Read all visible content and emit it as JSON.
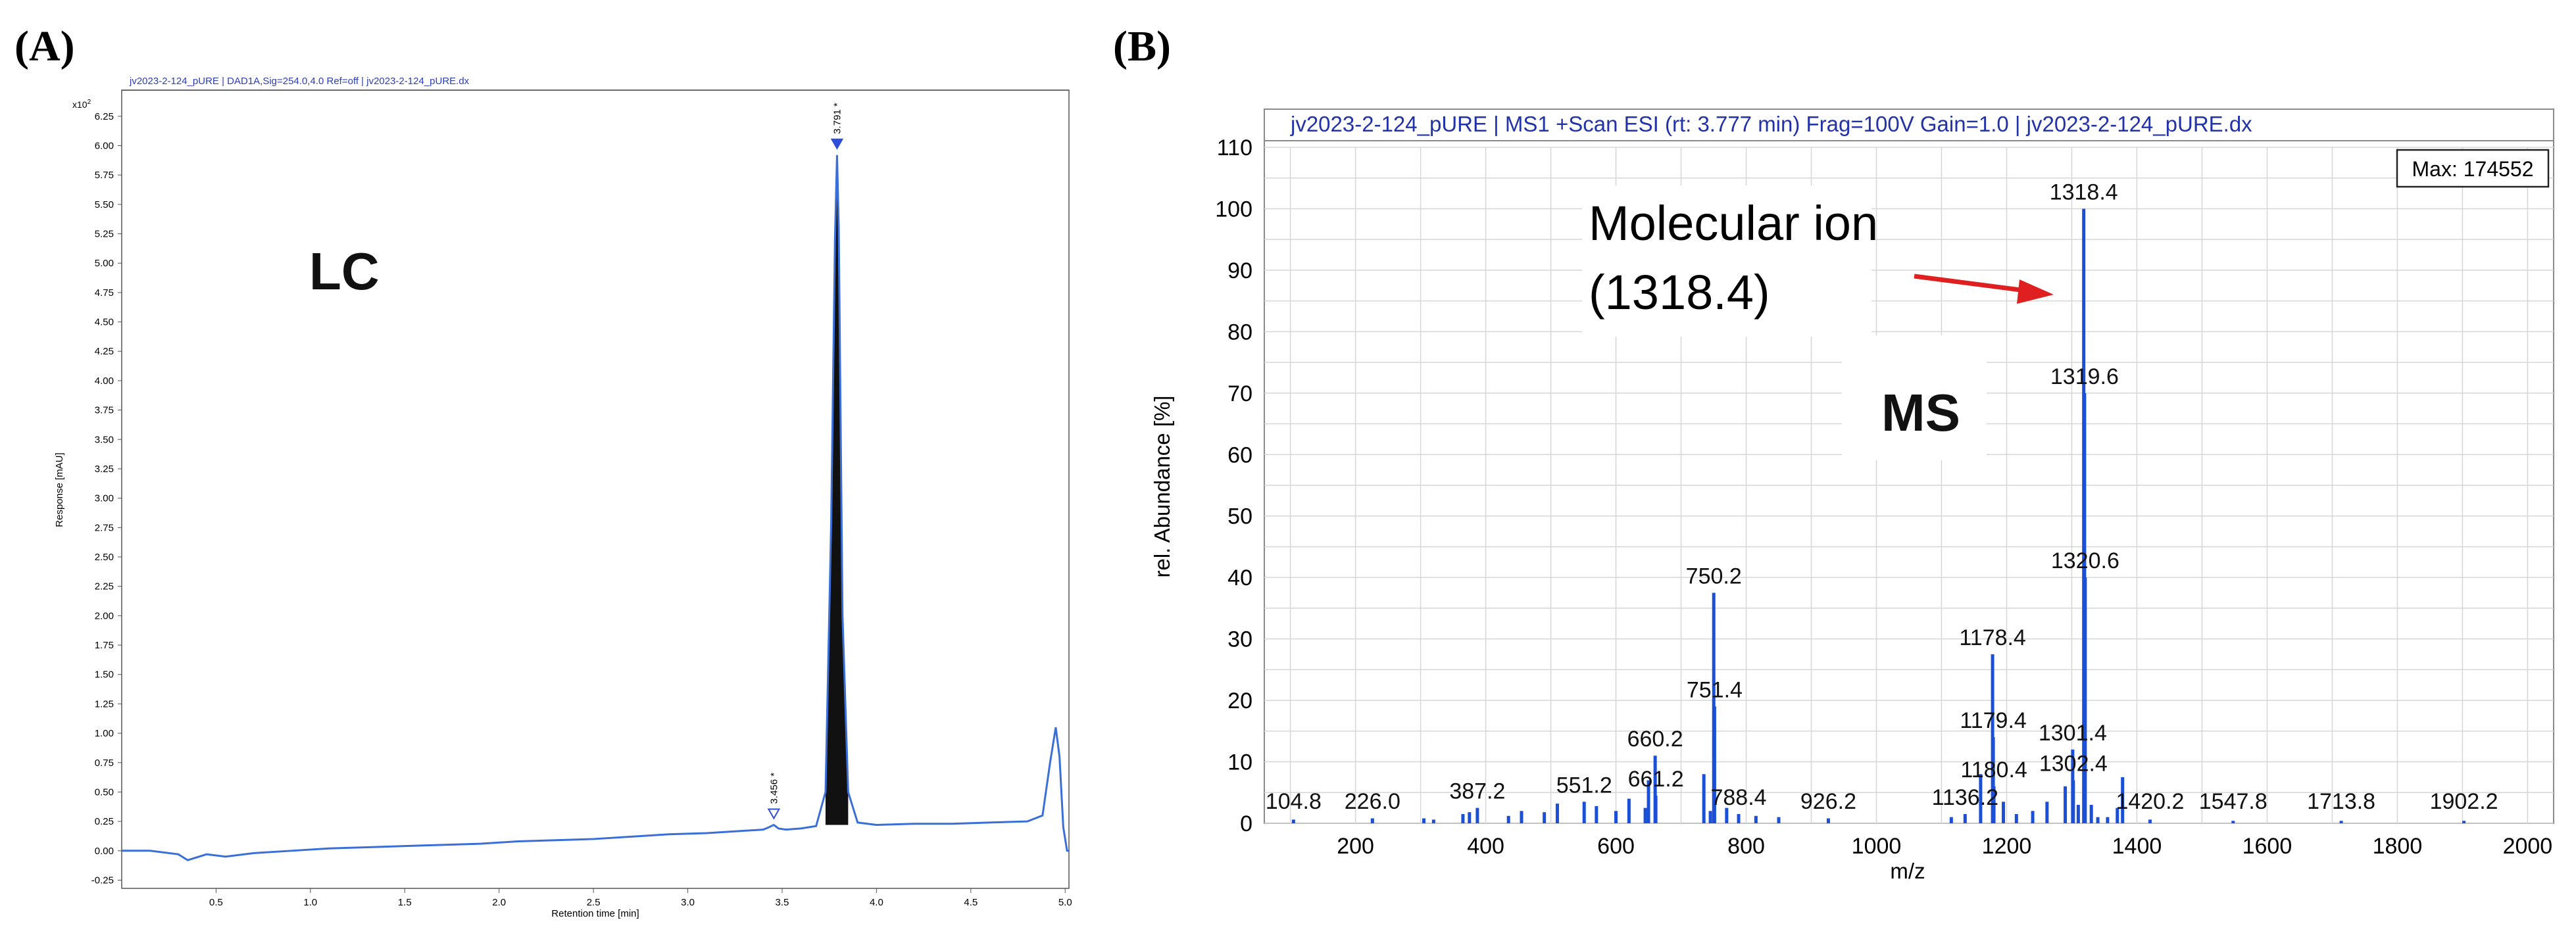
{
  "panels": [
    {
      "letter": "(A)"
    },
    {
      "letter": "(B)"
    }
  ],
  "chart_data": [
    {
      "type": "line",
      "panel": "(A)",
      "title": "jv2023-2-124_pURE | DAD1A,Sig=254.0,4.0 Ref=off | jv2023-2-124_pURE.dx",
      "xlabel": "Retention time [min]",
      "ylabel": "Response [mAU]",
      "y_multiplier": "x10",
      "y_exponent": "2",
      "xlim": [
        0.0,
        5.02
      ],
      "ylim": [
        -0.32,
        6.4
      ],
      "xticks": [
        0.5,
        1.0,
        1.5,
        2.0,
        2.5,
        3.0,
        3.5,
        4.0,
        4.5,
        5.0
      ],
      "xtick_labels": [
        "0.5",
        "1.0",
        "1.5",
        "2.0",
        "2.5",
        "3.0",
        "3.5",
        "4.0",
        "4.5",
        "5.0"
      ],
      "yticks": [
        -0.25,
        0,
        0.25,
        0.5,
        0.75,
        1.0,
        1.25,
        1.5,
        1.75,
        2.0,
        2.25,
        2.5,
        2.75,
        3.0,
        3.25,
        3.5,
        3.75,
        4.0,
        4.25,
        4.5,
        4.75,
        5.0,
        5.25,
        5.5,
        5.75,
        6.0,
        6.25
      ],
      "ytick_labels": [
        "-0.25",
        "0.00",
        "0.25",
        "0.50",
        "0.75",
        "1.00",
        "1.25",
        "1.50",
        "1.75",
        "2.00",
        "2.25",
        "2.50",
        "2.75",
        "3.00",
        "3.25",
        "3.50",
        "3.75",
        "4.00",
        "4.25",
        "4.50",
        "4.75",
        "5.00",
        "5.25",
        "5.50",
        "5.75",
        "6.00",
        "6.25"
      ],
      "annotation": "LC",
      "peaks": [
        {
          "x": 3.456,
          "y": 0.22,
          "label": "3.456 *"
        },
        {
          "x": 3.791,
          "y": 5.92,
          "label": "3.791 *"
        }
      ],
      "series": [
        {
          "color": "#3a6fd8",
          "x": [
            0.0,
            0.15,
            0.3,
            0.35,
            0.45,
            0.55,
            0.7,
            0.9,
            1.1,
            1.3,
            1.5,
            1.7,
            1.9,
            2.1,
            2.3,
            2.5,
            2.7,
            2.9,
            3.1,
            3.3,
            3.4,
            3.43,
            3.456,
            3.48,
            3.52,
            3.6,
            3.68,
            3.73,
            3.76,
            3.78,
            3.791,
            3.8,
            3.82,
            3.85,
            3.9,
            4.0,
            4.2,
            4.4,
            4.6,
            4.8,
            4.88,
            4.92,
            4.95,
            4.97,
            4.99,
            5.01,
            5.02
          ],
          "y": [
            0.0,
            0.0,
            -0.03,
            -0.08,
            -0.03,
            -0.05,
            -0.02,
            0.0,
            0.02,
            0.03,
            0.04,
            0.05,
            0.06,
            0.08,
            0.09,
            0.1,
            0.12,
            0.14,
            0.15,
            0.17,
            0.18,
            0.2,
            0.22,
            0.19,
            0.18,
            0.19,
            0.21,
            0.5,
            2.8,
            5.2,
            5.92,
            5.3,
            2.0,
            0.5,
            0.24,
            0.22,
            0.23,
            0.23,
            0.24,
            0.25,
            0.3,
            0.75,
            1.05,
            0.8,
            0.2,
            0.0,
            0.0
          ]
        }
      ]
    },
    {
      "type": "bar",
      "panel": "(B)",
      "title": "jv2023-2-124_pURE | MS1 +Scan ESI (rt: 3.777 min) Frag=100V Gain=1.0 | jv2023-2-124_pURE.dx",
      "xlabel": "m/z",
      "ylabel": "rel. Abundance [%]",
      "xlim": [
        60,
        2040
      ],
      "ylim": [
        0,
        110
      ],
      "xticks": [
        200,
        400,
        600,
        800,
        1000,
        1200,
        1400,
        1600,
        1800,
        2000
      ],
      "xtick_labels": [
        "200",
        "400",
        "600",
        "800",
        "1000",
        "1200",
        "1400",
        "1600",
        "1800",
        "2000"
      ],
      "yticks": [
        0,
        10,
        20,
        30,
        40,
        50,
        60,
        70,
        80,
        90,
        100,
        110
      ],
      "ytick_labels": [
        "0",
        "10",
        "20",
        "30",
        "40",
        "50",
        "60",
        "70",
        "80",
        "90",
        "100",
        "110"
      ],
      "grid": true,
      "max_label": "Max: 174552",
      "annotation": "MS",
      "callout": {
        "line1": "Molecular ion",
        "line2": "(1318.4)"
      },
      "color": "#1a4fd6",
      "peaks": [
        {
          "x": 104.8,
          "y": 0.6
        },
        {
          "x": 226.0,
          "y": 0.8
        },
        {
          "x": 305,
          "y": 0.8
        },
        {
          "x": 320,
          "y": 0.6
        },
        {
          "x": 365,
          "y": 1.5
        },
        {
          "x": 375,
          "y": 1.8
        },
        {
          "x": 387.2,
          "y": 2.5
        },
        {
          "x": 435,
          "y": 1.2
        },
        {
          "x": 455,
          "y": 2.0
        },
        {
          "x": 490,
          "y": 1.8
        },
        {
          "x": 510,
          "y": 3.2
        },
        {
          "x": 551.2,
          "y": 3.5
        },
        {
          "x": 570,
          "y": 2.8
        },
        {
          "x": 600,
          "y": 2.0
        },
        {
          "x": 620,
          "y": 4.0
        },
        {
          "x": 645,
          "y": 2.5
        },
        {
          "x": 650,
          "y": 7.0
        },
        {
          "x": 660.2,
          "y": 11.0
        },
        {
          "x": 661.2,
          "y": 4.5
        },
        {
          "x": 735,
          "y": 8.0
        },
        {
          "x": 745,
          "y": 2.0
        },
        {
          "x": 750.2,
          "y": 37.5
        },
        {
          "x": 751.4,
          "y": 19.0
        },
        {
          "x": 770,
          "y": 2.5
        },
        {
          "x": 788.4,
          "y": 1.5
        },
        {
          "x": 815,
          "y": 1.2
        },
        {
          "x": 850,
          "y": 1.0
        },
        {
          "x": 926.2,
          "y": 0.8
        },
        {
          "x": 1115,
          "y": 1.0
        },
        {
          "x": 1136.2,
          "y": 1.5
        },
        {
          "x": 1160,
          "y": 8.0
        },
        {
          "x": 1178.4,
          "y": 27.5
        },
        {
          "x": 1179.4,
          "y": 14.0
        },
        {
          "x": 1180.4,
          "y": 6.0
        },
        {
          "x": 1195,
          "y": 3.5
        },
        {
          "x": 1215,
          "y": 1.5
        },
        {
          "x": 1240,
          "y": 2.0
        },
        {
          "x": 1262,
          "y": 3.5
        },
        {
          "x": 1290,
          "y": 6.0
        },
        {
          "x": 1301.4,
          "y": 12.0
        },
        {
          "x": 1302.4,
          "y": 7.0
        },
        {
          "x": 1310,
          "y": 3.0
        },
        {
          "x": 1318.4,
          "y": 100.0
        },
        {
          "x": 1319.6,
          "y": 70.0
        },
        {
          "x": 1320.6,
          "y": 40.0
        },
        {
          "x": 1330,
          "y": 3.0
        },
        {
          "x": 1340,
          "y": 1.0
        },
        {
          "x": 1355,
          "y": 1.0
        },
        {
          "x": 1370,
          "y": 2.5
        },
        {
          "x": 1378,
          "y": 7.5
        },
        {
          "x": 1420.2,
          "y": 0.6
        },
        {
          "x": 1547.8,
          "y": 0.4
        },
        {
          "x": 1713.8,
          "y": 0.4
        },
        {
          "x": 1902.2,
          "y": 0.4
        }
      ],
      "peak_labels": [
        {
          "x": 104.8,
          "y": 0.6,
          "label": "104.8"
        },
        {
          "x": 226.0,
          "y": 0.8,
          "label": "226.0"
        },
        {
          "x": 387.2,
          "y": 2.5,
          "label": "387.2"
        },
        {
          "x": 551.2,
          "y": 3.5,
          "label": "551.2"
        },
        {
          "x": 660.2,
          "y": 11.0,
          "label": "660.2"
        },
        {
          "x": 661.2,
          "y": 4.5,
          "label": "661.2"
        },
        {
          "x": 750.2,
          "y": 37.5,
          "label": "750.2"
        },
        {
          "x": 751.4,
          "y": 19.0,
          "label": "751.4"
        },
        {
          "x": 788.4,
          "y": 1.5,
          "label": "788.4"
        },
        {
          "x": 926.2,
          "y": 0.8,
          "label": "926.2"
        },
        {
          "x": 1136.2,
          "y": 1.5,
          "label": "1136.2"
        },
        {
          "x": 1178.4,
          "y": 27.5,
          "label": "1178.4"
        },
        {
          "x": 1179.4,
          "y": 14.0,
          "label": "1179.4"
        },
        {
          "x": 1180.4,
          "y": 6.0,
          "label": "1180.4"
        },
        {
          "x": 1301.4,
          "y": 12.0,
          "label": "1301.4"
        },
        {
          "x": 1302.4,
          "y": 7.0,
          "label": "1302.4"
        },
        {
          "x": 1318.4,
          "y": 100.0,
          "label": "1318.4"
        },
        {
          "x": 1319.6,
          "y": 70.0,
          "label": "1319.6"
        },
        {
          "x": 1320.6,
          "y": 40.0,
          "label": "1320.6"
        },
        {
          "x": 1420.2,
          "y": 0.6,
          "label": "1420.2"
        },
        {
          "x": 1547.8,
          "y": 0.4,
          "label": "1547.8"
        },
        {
          "x": 1713.8,
          "y": 0.4,
          "label": "1713.8"
        },
        {
          "x": 1902.2,
          "y": 0.4,
          "label": "1902.2"
        }
      ]
    }
  ]
}
